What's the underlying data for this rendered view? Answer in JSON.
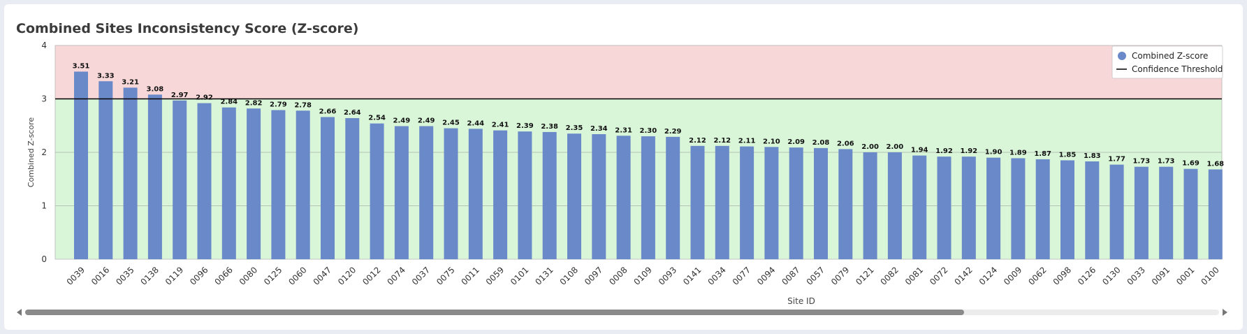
{
  "chart_data": {
    "type": "bar",
    "title": "Combined Sites Inconsistency Score (Z-score)",
    "xlabel": "Site ID",
    "ylabel": "Combined Z-score",
    "ylim": [
      0,
      4
    ],
    "yticks": [
      "0",
      "1",
      "2",
      "3",
      "4"
    ],
    "threshold": 3,
    "grid": true,
    "legend_position": "top-right",
    "legend": [
      {
        "label": "Combined Z-score",
        "kind": "marker"
      },
      {
        "label": "Confidence Threshold",
        "kind": "line"
      }
    ],
    "colors": {
      "bar": "#6a89c8",
      "above_zone": "#f7d7d8",
      "below_zone": "#d9f6d9",
      "threshold_line": "#000000"
    },
    "categories": [
      "0039",
      "0016",
      "0035",
      "0138",
      "0119",
      "0096",
      "0066",
      "0080",
      "0125",
      "0060",
      "0047",
      "0120",
      "0012",
      "0074",
      "0037",
      "0075",
      "0011",
      "0059",
      "0101",
      "0131",
      "0108",
      "0097",
      "0008",
      "0109",
      "0093",
      "0141",
      "0034",
      "0077",
      "0094",
      "0087",
      "0057",
      "0079",
      "0121",
      "0082",
      "0081",
      "0072",
      "0142",
      "0124",
      "0009",
      "0062",
      "0098",
      "0126",
      "0130",
      "0033",
      "0091",
      "0001",
      "0100"
    ],
    "values": [
      3.51,
      3.33,
      3.21,
      3.08,
      2.97,
      2.92,
      2.84,
      2.82,
      2.79,
      2.78,
      2.66,
      2.64,
      2.54,
      2.49,
      2.49,
      2.45,
      2.44,
      2.41,
      2.39,
      2.38,
      2.35,
      2.34,
      2.31,
      2.3,
      2.29,
      2.12,
      2.12,
      2.11,
      2.1,
      2.09,
      2.08,
      2.06,
      2.0,
      2.0,
      1.94,
      1.92,
      1.92,
      1.9,
      1.89,
      1.87,
      1.85,
      1.83,
      1.77,
      1.73,
      1.73,
      1.69,
      1.68
    ],
    "value_labels": [
      "3.51",
      "3.33",
      "3.21",
      "3.08",
      "2.97",
      "2.92",
      "2.84",
      "2.82",
      "2.79",
      "2.78",
      "2.66",
      "2.64",
      "2.54",
      "2.49",
      "2.49",
      "2.45",
      "2.44",
      "2.41",
      "2.39",
      "2.38",
      "2.35",
      "2.34",
      "2.31",
      "2.30",
      "2.29",
      "2.12",
      "2.12",
      "2.11",
      "2.10",
      "2.09",
      "2.08",
      "2.06",
      "2.00",
      "2.00",
      "1.94",
      "1.92",
      "1.92",
      "1.90",
      "1.89",
      "1.87",
      "1.85",
      "1.83",
      "1.77",
      "1.73",
      "1.73",
      "1.69",
      "1.68"
    ]
  },
  "scrollbar": {
    "visible_fraction": 0.78,
    "position_fraction": 0.0
  }
}
